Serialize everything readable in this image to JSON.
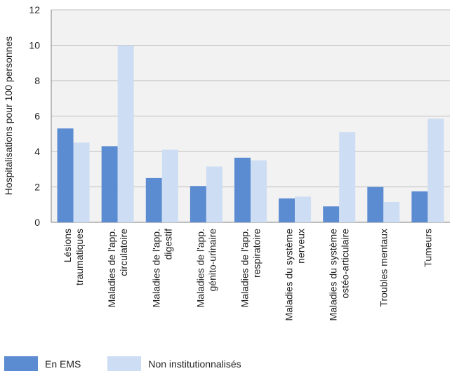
{
  "chart_data": {
    "type": "bar",
    "ylabel": "Hospitalisations pour 100 personnes",
    "xlabel": "",
    "ylim": [
      0,
      12
    ],
    "yticks": [
      0,
      2,
      4,
      6,
      8,
      10,
      12
    ],
    "grid": true,
    "legend_position": "bottom-left",
    "categories": [
      [
        "Lésions",
        "traumatiques"
      ],
      [
        "Maladies de l'app.",
        "circulatoire"
      ],
      [
        "Maladies de l'app.",
        "digestif"
      ],
      [
        "Maladies de l'app.",
        "génito-urinaire"
      ],
      [
        "Maladies de l'app.",
        "respiratoire"
      ],
      [
        "Maladies du système",
        "nerveux"
      ],
      [
        "Maladies du système",
        "ostéo-articulaire"
      ],
      [
        "Troubles mentaux"
      ],
      [
        "Tumeurs"
      ]
    ],
    "series": [
      {
        "name": "En EMS",
        "color": "#5b8bd0",
        "values": [
          5.3,
          4.3,
          2.5,
          2.05,
          3.65,
          1.35,
          0.9,
          2.0,
          1.75
        ]
      },
      {
        "name": "Non institutionnalisés",
        "color": "#cdddf3",
        "values": [
          4.5,
          10.0,
          4.1,
          3.15,
          3.5,
          1.45,
          5.1,
          1.15,
          5.85
        ]
      }
    ]
  }
}
